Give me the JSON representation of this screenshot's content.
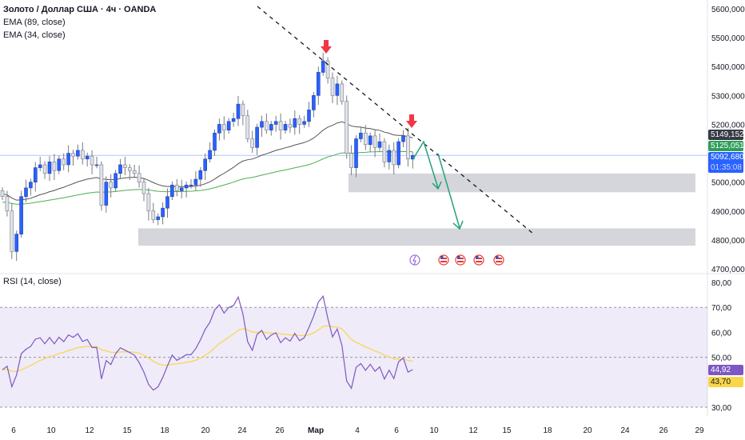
{
  "header": {
    "symbol": "Золото / Доллар США · 4ч · OANDA",
    "ema89": "EMA (89, close)",
    "ema34": "EMA (34, close)"
  },
  "rsi_title": "RSI (14, close)",
  "badges": {
    "ema34": "5149,152",
    "ema89": "5125,051",
    "price": "5092,680",
    "countdown": "01:35:08",
    "rsi": "44,92",
    "rsi_ma": "43,70"
  },
  "colors": {
    "up": "#2962ff",
    "down": "#d1d4dc",
    "ema34": "#555",
    "ema89": "#4caf50",
    "rsi": "#7e57c2",
    "rsi_ma": "#f9d648",
    "arrow": "#26a17a",
    "marker": "#f23645"
  },
  "chart_data": {
    "type": "candlestick",
    "price_axis": {
      "ticks": [
        "5600,000",
        "5500,000",
        "5400,000",
        "5300,000",
        "5200,000",
        "5000,000",
        "4900,000",
        "4800,000",
        "4700,000"
      ],
      "values": [
        5600,
        5500,
        5400,
        5300,
        5200,
        5000,
        4900,
        4800,
        4700
      ],
      "range": [
        4700,
        5600
      ]
    },
    "rsi_axis": {
      "ticks": [
        "80,00",
        "70,00",
        "60,00",
        "50,00",
        "30,00"
      ],
      "values": [
        80,
        70,
        60,
        50,
        30
      ],
      "range": [
        30,
        80
      ]
    },
    "x_ticks": [
      "6",
      "10",
      "12",
      "15",
      "18",
      "20",
      "24",
      "26",
      "Мар",
      "4",
      "6",
      "10",
      "12",
      "15",
      "18",
      "20",
      "24",
      "26",
      "29"
    ],
    "closes": [
      4950,
      4900,
      4760,
      4820,
      4950,
      4980,
      5000,
      5050,
      5060,
      5030,
      5070,
      5040,
      5080,
      5060,
      5100,
      5090,
      5110,
      5080,
      5090,
      5060,
      5060,
      4920,
      5000,
      4980,
      5030,
      5060,
      5050,
      5040,
      5030,
      5000,
      4960,
      4900,
      4870,
      4880,
      4910,
      4950,
      4990,
      4970,
      4980,
      4990,
      4990,
      5010,
      5040,
      5080,
      5110,
      5170,
      5200,
      5180,
      5210,
      5220,
      5270,
      5230,
      5150,
      5120,
      5190,
      5210,
      5180,
      5200,
      5210,
      5180,
      5200,
      5190,
      5220,
      5200,
      5210,
      5250,
      5300,
      5380,
      5420,
      5360,
      5300,
      5340,
      5280,
      5100,
      5050,
      5150,
      5170,
      5130,
      5160,
      5120,
      5140,
      5070,
      5110,
      5060,
      5140,
      5160,
      5080,
      5092
    ],
    "zones": [
      [
        4965,
        5030
      ],
      [
        4780,
        4840
      ]
    ],
    "current_price": 5092.68
  }
}
